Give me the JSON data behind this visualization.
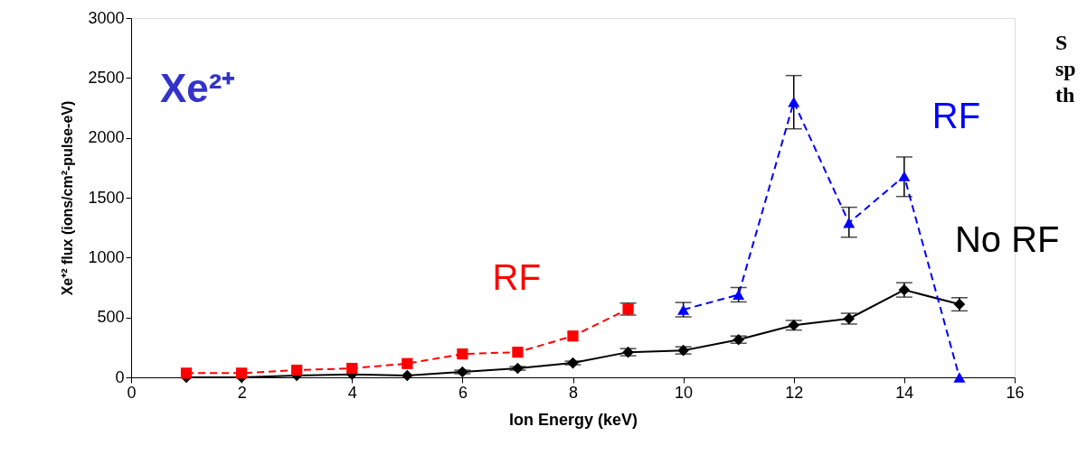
{
  "chart_data": {
    "type": "line",
    "title": "Xe²⁺",
    "xlabel": "Ion Energy (keV)",
    "ylabel": "Xe⁺² flux (ions/cm²-pulse-eV)",
    "xlim": [
      0,
      16
    ],
    "xticks": [
      0,
      2,
      4,
      6,
      8,
      10,
      12,
      14,
      16
    ],
    "ylim": [
      0,
      3000
    ],
    "yticks": [
      0,
      500,
      1000,
      1500,
      2000,
      2500,
      3000
    ],
    "grid": false,
    "series": [
      {
        "name": "No RF",
        "color": "#000000",
        "marker": "diamond",
        "line_style": "solid",
        "x": [
          1,
          2,
          3,
          4,
          5,
          6,
          7,
          8,
          9,
          10,
          11,
          12,
          13,
          14,
          15
        ],
        "values": [
          0,
          0,
          15,
          25,
          15,
          45,
          75,
          120,
          210,
          225,
          315,
          435,
          490,
          730,
          610
        ],
        "errors": [
          null,
          null,
          null,
          null,
          null,
          15,
          15,
          15,
          30,
          30,
          30,
          40,
          45,
          60,
          55
        ]
      },
      {
        "name": "RF",
        "color": "#ff0000",
        "marker": "square",
        "line_style": "dashed",
        "x": [
          1,
          2,
          3,
          4,
          5,
          6,
          7,
          8,
          9
        ],
        "values": [
          35,
          35,
          60,
          75,
          115,
          195,
          210,
          345,
          570
        ],
        "errors": [
          null,
          null,
          null,
          null,
          null,
          null,
          null,
          null,
          50
        ]
      },
      {
        "name": "RF",
        "color": "#0000ff",
        "marker": "triangle",
        "line_style": "dashed",
        "x": [
          10,
          11,
          12,
          13,
          14,
          15
        ],
        "values": [
          565,
          690,
          2300,
          1290,
          1680,
          0
        ],
        "errors": [
          60,
          60,
          [
            2075,
            2520
          ],
          [
            1170,
            1420
          ],
          [
            1510,
            1840
          ],
          null
        ]
      }
    ],
    "annotations": [
      "S",
      "sp",
      "th"
    ]
  }
}
